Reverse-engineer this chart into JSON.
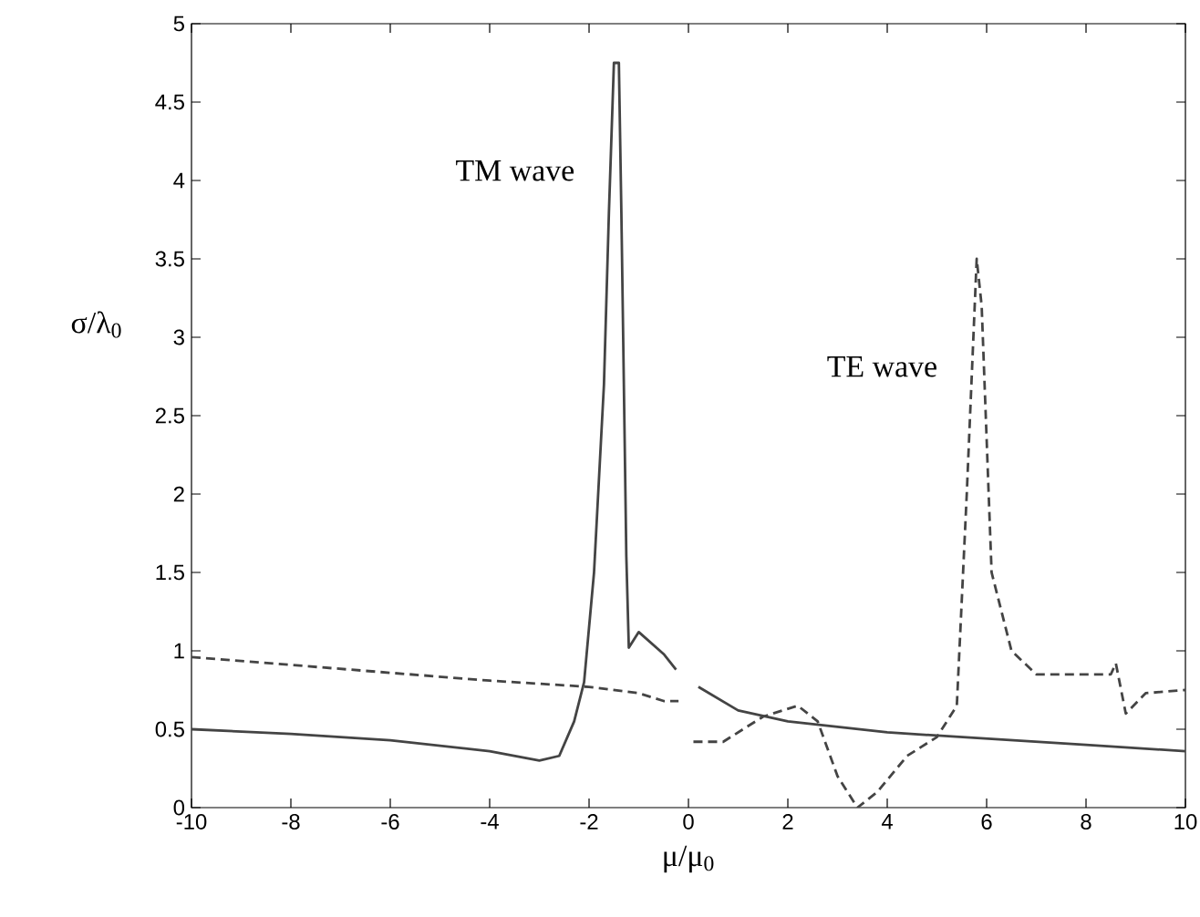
{
  "chart_data": {
    "type": "line",
    "xlabel": "μ/μ$_{0}$",
    "ylabel": "σ/λ$_{0}$",
    "xlim": [
      -10,
      10
    ],
    "ylim": [
      0,
      5
    ],
    "xticks": [
      -10,
      -8,
      -6,
      -4,
      -2,
      0,
      2,
      4,
      6,
      8,
      10
    ],
    "yticks": [
      0,
      0.5,
      1,
      1.5,
      2,
      2.5,
      3,
      3.5,
      4,
      4.5,
      5
    ],
    "grid": false,
    "marker": "none",
    "x": [
      -10,
      -8,
      -6,
      -4,
      -3,
      -2.6,
      -2.3,
      -2.1,
      -1.9,
      -1.7,
      -1.6,
      -1.5,
      -1.4,
      -1.35,
      -1.25,
      -1.2,
      -1.0,
      -0.5,
      -0.25,
      0,
      0.2,
      1,
      2,
      4,
      6,
      8,
      10
    ],
    "series": [
      {
        "name": "TM wave",
        "color": "#444444",
        "line_style": "solid",
        "values": [
          0.5,
          0.47,
          0.43,
          0.36,
          0.3,
          0.33,
          0.55,
          0.8,
          1.5,
          2.7,
          3.8,
          4.75,
          4.75,
          3.8,
          1.6,
          1.02,
          1.12,
          0.98,
          0.88,
          null,
          0.77,
          0.62,
          0.55,
          0.48,
          0.44,
          0.4,
          0.36
        ]
      },
      {
        "name": "TE wave",
        "color": "#444444",
        "line_style": "dashed",
        "x": [
          -10,
          -8,
          -6,
          -4,
          -2,
          -1,
          -0.5,
          -0.2,
          0,
          0.1,
          0.7,
          1.5,
          2.2,
          2.6,
          3.0,
          3.4,
          3.8,
          4.4,
          5.0,
          5.4,
          5.6,
          5.8,
          5.9,
          6.1,
          6.5,
          7.0,
          8.5,
          8.6,
          8.8,
          9.2,
          10
        ],
        "values": [
          0.96,
          0.91,
          0.86,
          0.81,
          0.77,
          0.73,
          0.68,
          0.68,
          null,
          0.42,
          0.42,
          0.58,
          0.65,
          0.55,
          0.2,
          0.0,
          0.1,
          0.33,
          0.45,
          0.65,
          2.0,
          3.5,
          3.2,
          1.5,
          1.0,
          0.85,
          0.85,
          0.92,
          0.6,
          0.73,
          0.75
        ]
      }
    ]
  }
}
